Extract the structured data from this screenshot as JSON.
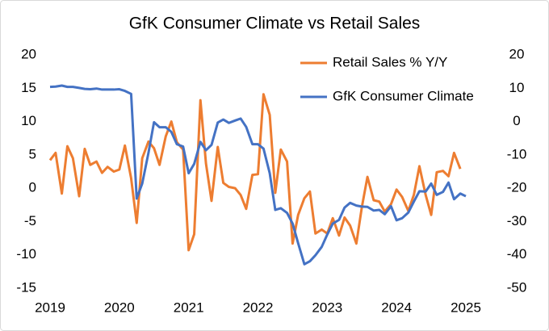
{
  "chart_data": {
    "type": "line",
    "title": "GfK Consumer Climate vs Retail Sales",
    "xlim": [
      2019,
      2025
    ],
    "xticks": [
      2019,
      2020,
      2021,
      2022,
      2023,
      2024,
      2025
    ],
    "ylim": [
      -15,
      20
    ],
    "yticks": [
      -15,
      -10,
      -5,
      0,
      5,
      10,
      15,
      20
    ],
    "y2lim": [
      -50,
      20
    ],
    "y2ticks": [
      -50,
      -40,
      -30,
      -20,
      -10,
      0,
      10,
      20
    ],
    "legend": "upper right",
    "series": [
      {
        "name": "Retail Sales % Y/Y",
        "color": "#ed7d31",
        "x": [
          2019,
          2019.08,
          2019.17,
          2019.25,
          2019.33,
          2019.42,
          2019.5,
          2019.58,
          2019.67,
          2019.75,
          2019.83,
          2019.92,
          2020,
          2020.08,
          2020.17,
          2020.25,
          2020.33,
          2020.42,
          2020.5,
          2020.58,
          2020.67,
          2020.75,
          2020.83,
          2020.92,
          2021,
          2021.08,
          2021.17,
          2021.25,
          2021.33,
          2021.42,
          2021.5,
          2021.58,
          2021.67,
          2021.75,
          2021.83,
          2021.92,
          2022,
          2022.08,
          2022.17,
          2022.25,
          2022.33,
          2022.42,
          2022.5,
          2022.58,
          2022.67,
          2022.75,
          2022.83,
          2022.92,
          2023,
          2023.08,
          2023.17,
          2023.25,
          2023.33,
          2023.42,
          2023.5,
          2023.58,
          2023.67,
          2023.75,
          2023.83,
          2023.92,
          2024,
          2024.08,
          2024.17,
          2024.25,
          2024.33,
          2024.42,
          2024.5,
          2024.58,
          2024.67,
          2024.75,
          2024.83,
          2024.92
        ],
        "values": [
          4.2,
          5.3,
          -0.8,
          6.3,
          4.5,
          -1.2,
          5.9,
          3.5,
          4.0,
          2.3,
          3.2,
          2.5,
          2.8,
          6.4,
          1.5,
          -5.2,
          4.5,
          7.0,
          6.0,
          3.5,
          7.8,
          10.0,
          6.9,
          5.8,
          -9.3,
          -6.9,
          13.2,
          3.7,
          -1.9,
          6.2,
          0.8,
          0.2,
          0.0,
          -1.0,
          -3.1,
          2.0,
          2.1,
          14.1,
          11.0,
          -0.7,
          5.8,
          4.0,
          -8.3,
          -4.0,
          -1.5,
          -0.5,
          -6.8,
          -6.2,
          -6.8,
          -4.5,
          -7.1,
          -4.4,
          -5.6,
          -8.3,
          -2.8,
          1.7,
          -1.8,
          -2.0,
          -3.5,
          -2.4,
          -0.2,
          -1.3,
          -3.4,
          -1.0,
          3.3,
          -1.0,
          -4.0,
          2.4,
          2.6,
          1.8,
          5.3,
          2.9
        ]
      },
      {
        "name": "GfK Consumer Climate",
        "color": "#4472c4",
        "axis": "y2",
        "x": [
          2019,
          2019.08,
          2019.17,
          2019.25,
          2019.33,
          2019.42,
          2019.5,
          2019.58,
          2019.67,
          2019.75,
          2019.83,
          2019.92,
          2020,
          2020.08,
          2020.17,
          2020.25,
          2020.33,
          2020.42,
          2020.5,
          2020.58,
          2020.67,
          2020.75,
          2020.83,
          2020.92,
          2021,
          2021.08,
          2021.17,
          2021.25,
          2021.33,
          2021.42,
          2021.5,
          2021.58,
          2021.67,
          2021.75,
          2021.83,
          2021.92,
          2022,
          2022.08,
          2022.17,
          2022.25,
          2022.33,
          2022.42,
          2022.5,
          2022.58,
          2022.67,
          2022.75,
          2022.83,
          2022.92,
          2023,
          2023.08,
          2023.17,
          2023.25,
          2023.33,
          2023.42,
          2023.5,
          2023.58,
          2023.67,
          2023.75,
          2023.83,
          2023.92,
          2024,
          2024.08,
          2024.17,
          2024.25,
          2024.33,
          2024.42,
          2024.5,
          2024.58,
          2024.67,
          2024.75,
          2024.83,
          2024.92,
          2025
        ],
        "values": [
          10.4,
          10.5,
          10.8,
          10.4,
          10.4,
          10.1,
          9.8,
          9.7,
          9.9,
          9.6,
          9.6,
          9.6,
          9.7,
          9.2,
          8.3,
          -23.1,
          -18.6,
          -9.4,
          -0.2,
          -1.7,
          -1.7,
          -3.1,
          -6.8,
          -7.5,
          -15.5,
          -12.7,
          -6.1,
          -8.6,
          -7.0,
          -0.3,
          0.6,
          -0.4,
          0.3,
          0.9,
          -1.6,
          -6.8,
          -6.8,
          -8.1,
          -15.5,
          -26.5,
          -26.0,
          -27.4,
          -30.6,
          -36.5,
          -42.8,
          -41.9,
          -40.1,
          -37.6,
          -33.9,
          -30.6,
          -29.5,
          -25.8,
          -24.4,
          -25.2,
          -25.5,
          -25.6,
          -26.7,
          -26.5,
          -27.8,
          -25.4,
          -29.6,
          -29.0,
          -27.3,
          -24.0,
          -20.9,
          -21.0,
          -18.6,
          -22.0,
          -21.1,
          -18.3,
          -23.3,
          -21.6,
          -22.4
        ]
      }
    ]
  }
}
